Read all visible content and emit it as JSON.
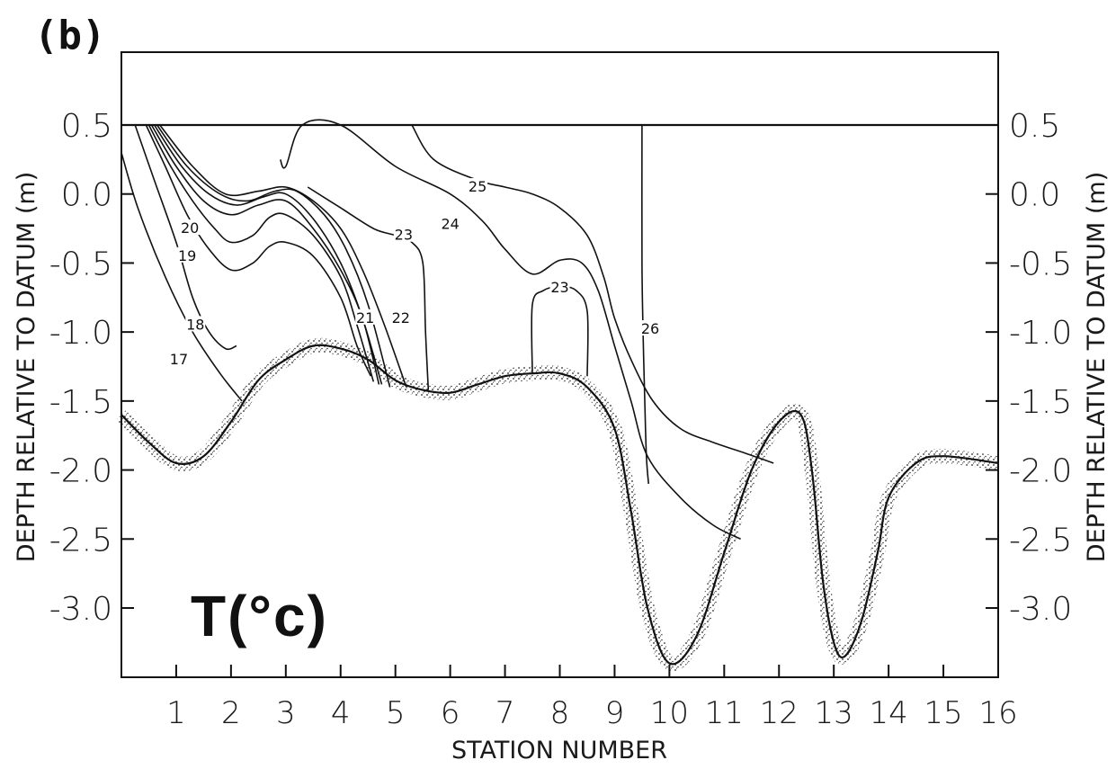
{
  "chart_data": {
    "type": "contour",
    "panel_label": "(b)",
    "title": "T(°c)",
    "xlabel": "STATION NUMBER",
    "ylabel": "DEPTH RELATIVE TO DATUM (m)",
    "ylabel_right": "DEPTH RELATIVE TO DATUM (m)",
    "xlim": [
      0,
      16
    ],
    "ylim": [
      -3.5,
      1.0
    ],
    "x_ticks": [
      1,
      2,
      3,
      4,
      5,
      6,
      7,
      8,
      9,
      10,
      11,
      12,
      13,
      14,
      15,
      16
    ],
    "x_tick_labels": [
      "1",
      "2",
      "3",
      "4",
      "5",
      "6",
      "7",
      "8",
      "9",
      "10",
      "11",
      "12",
      "13",
      "14",
      "15",
      "16"
    ],
    "y_ticks": [
      0.5,
      0.0,
      -0.5,
      -1.0,
      -1.5,
      -2.0,
      -2.5,
      -3.0
    ],
    "y_tick_labels": [
      "0.5",
      "0.0",
      "-0.5",
      "-1.0",
      "-1.5",
      "-2.0",
      "-2.5",
      "-3.0"
    ],
    "surface_level": 0.5,
    "bottom_profile": {
      "x": [
        0,
        0.5,
        1,
        1.5,
        2,
        2.5,
        3,
        3.5,
        4,
        4.5,
        5,
        5.5,
        6,
        6.5,
        7,
        7.5,
        8,
        8.5,
        9,
        9.3,
        9.6,
        10,
        10.5,
        11,
        11.5,
        12,
        12.4,
        12.6,
        12.8,
        13,
        13.2,
        13.5,
        13.8,
        14,
        14.5,
        15,
        16
      ],
      "y": [
        -1.6,
        -1.8,
        -1.95,
        -1.9,
        -1.65,
        -1.35,
        -1.2,
        -1.1,
        -1.12,
        -1.2,
        -1.35,
        -1.42,
        -1.44,
        -1.38,
        -1.32,
        -1.3,
        -1.3,
        -1.4,
        -1.7,
        -2.3,
        -3.0,
        -3.4,
        -3.2,
        -2.6,
        -2.0,
        -1.65,
        -1.6,
        -2.0,
        -2.8,
        -3.25,
        -3.35,
        -3.1,
        -2.6,
        -2.2,
        -1.95,
        -1.9,
        -1.95
      ]
    },
    "contours": [
      {
        "level": "17",
        "x": [
          0,
          0.3,
          0.8,
          1.3,
          1.8,
          2.2
        ],
        "y": [
          0.3,
          -0.1,
          -0.6,
          -1.0,
          -1.3,
          -1.5
        ]
      },
      {
        "level": "18",
        "x": [
          0.25,
          0.6,
          1.0,
          1.3,
          1.6,
          1.9,
          2.1
        ],
        "y": [
          0.5,
          0.1,
          -0.35,
          -0.75,
          -1.0,
          -1.12,
          -1.1
        ]
      },
      {
        "level": "19",
        "x": [
          0.45,
          0.8,
          1.2,
          1.6,
          2.0,
          2.4,
          2.7,
          3.0,
          3.5,
          4.0,
          4.3,
          4.55
        ],
        "y": [
          0.5,
          0.2,
          -0.15,
          -0.4,
          -0.55,
          -0.5,
          -0.38,
          -0.35,
          -0.45,
          -0.75,
          -1.1,
          -1.32
        ]
      },
      {
        "level": "20",
        "x": [
          0.5,
          0.9,
          1.3,
          1.7,
          2.0,
          2.4,
          2.7,
          3.0,
          3.5,
          4.0,
          4.3,
          4.6
        ],
        "y": [
          0.5,
          0.2,
          -0.05,
          -0.25,
          -0.35,
          -0.3,
          -0.17,
          -0.15,
          -0.3,
          -0.6,
          -0.95,
          -1.36
        ]
      },
      {
        "level": "21",
        "x": [
          0.55,
          1.0,
          1.5,
          2.0,
          2.5,
          3.0,
          3.5,
          4.0,
          4.4,
          4.7
        ],
        "y": [
          0.5,
          0.2,
          -0.05,
          -0.15,
          -0.08,
          -0.05,
          -0.25,
          -0.55,
          -0.9,
          -1.38
        ]
      },
      {
        "level": "21b",
        "x": [
          0.6,
          1.1,
          1.6,
          2.1,
          2.6,
          3.0,
          3.5,
          4.0,
          4.4,
          4.75
        ],
        "y": [
          0.5,
          0.2,
          0.0,
          -0.08,
          -0.02,
          0.0,
          -0.18,
          -0.5,
          -0.9,
          -1.38
        ]
      },
      {
        "level": "22",
        "x": [
          0.65,
          1.2,
          1.8,
          2.3,
          2.8,
          3.2,
          3.7,
          4.1,
          4.5,
          4.9
        ],
        "y": [
          0.5,
          0.2,
          0.0,
          -0.05,
          0.02,
          0.02,
          -0.15,
          -0.4,
          -0.8,
          -1.4
        ]
      },
      {
        "level": "22",
        "x": [
          0.7,
          1.3,
          1.9,
          2.5,
          3.0,
          3.5,
          4.0,
          4.4,
          4.8,
          5.2
        ],
        "y": [
          0.5,
          0.2,
          0.0,
          0.02,
          0.05,
          -0.05,
          -0.25,
          -0.55,
          -0.95,
          -1.4
        ]
      },
      {
        "level": "23",
        "x": [
          3.4,
          4.0,
          4.6,
          5.0,
          5.3,
          5.5,
          5.55,
          5.6
        ],
        "y": [
          0.05,
          -0.1,
          -0.25,
          -0.3,
          -0.35,
          -0.5,
          -1.0,
          -1.42
        ]
      },
      {
        "level": "24",
        "x": [
          2.9,
          3.0,
          3.3,
          4.0,
          5.0,
          6.0,
          6.6,
          7.0,
          7.5,
          8.0,
          8.4,
          8.7,
          9.0,
          9.3,
          9.6,
          10.2,
          10.8,
          11.3
        ],
        "y": [
          0.25,
          0.2,
          0.5,
          0.5,
          0.2,
          0.0,
          -0.2,
          -0.4,
          -0.58,
          -0.48,
          -0.5,
          -0.7,
          -1.1,
          -1.5,
          -1.9,
          -2.2,
          -2.4,
          -2.5
        ]
      },
      {
        "level": "25",
        "x": [
          5.3,
          5.7,
          6.5,
          7.0,
          7.5,
          8.0,
          8.5,
          8.8,
          9.0,
          9.3,
          9.7,
          10.2,
          10.8,
          11.4,
          11.9
        ],
        "y": [
          0.5,
          0.25,
          0.1,
          0.05,
          0.0,
          -0.1,
          -0.3,
          -0.6,
          -0.9,
          -1.2,
          -1.5,
          -1.7,
          -1.8,
          -1.88,
          -1.95
        ]
      },
      {
        "level": "23",
        "x": [
          7.5,
          7.5,
          7.7,
          8.0,
          8.3,
          8.5,
          8.5
        ],
        "y": [
          -1.3,
          -0.8,
          -0.7,
          -0.67,
          -0.7,
          -0.85,
          -1.32
        ]
      },
      {
        "level": "26",
        "x": [
          9.5,
          9.5,
          9.52,
          9.55,
          9.58,
          9.62
        ],
        "y": [
          0.5,
          -0.5,
          -1.0,
          -1.5,
          -1.9,
          -2.1
        ]
      }
    ],
    "contour_labels": [
      {
        "text": "17",
        "x": 1.05,
        "y": -1.2
      },
      {
        "text": "18",
        "x": 1.35,
        "y": -0.95
      },
      {
        "text": "19",
        "x": 1.2,
        "y": -0.45
      },
      {
        "text": "20",
        "x": 1.25,
        "y": -0.25
      },
      {
        "text": "21",
        "x": 4.45,
        "y": -0.9
      },
      {
        "text": "22",
        "x": 5.1,
        "y": -0.9
      },
      {
        "text": "23",
        "x": 5.15,
        "y": -0.3
      },
      {
        "text": "24",
        "x": 6.0,
        "y": -0.22
      },
      {
        "text": "25",
        "x": 6.5,
        "y": 0.05
      },
      {
        "text": "23",
        "x": 8.0,
        "y": -0.68
      },
      {
        "text": "26",
        "x": 9.65,
        "y": -0.98
      }
    ],
    "grid": false
  }
}
